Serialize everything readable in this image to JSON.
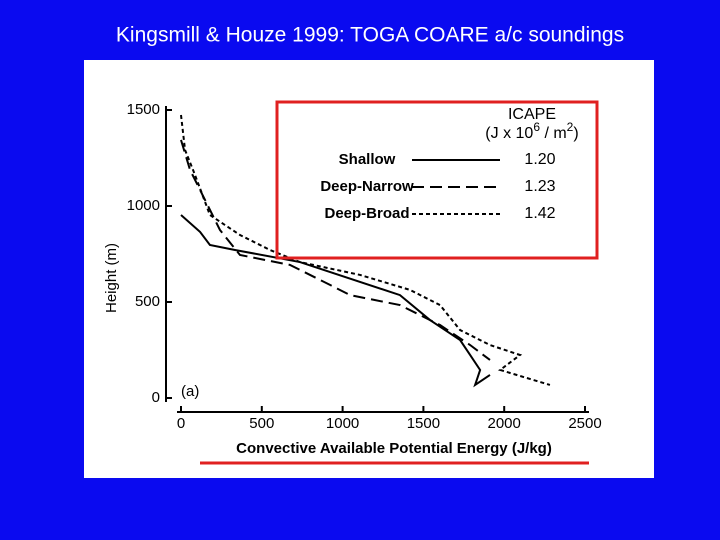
{
  "slide_title": "Kingsmill & Houze 1999: TOGA COARE a/c soundings",
  "chart_data": {
    "type": "line",
    "xlabel": "Convective Available Potential Energy (J/kg)",
    "ylabel": "Height (m)",
    "annotation": "(a)",
    "legend_title": "ICAPE",
    "legend_units": [
      "(J x 10",
      "6",
      " / m",
      "2",
      ")"
    ],
    "xlim": [
      0,
      2500
    ],
    "xticks": [
      0,
      500,
      1000,
      1500,
      2000,
      2500
    ],
    "ylim": [
      0,
      1500
    ],
    "yticks": [
      0,
      500,
      1000,
      1500
    ],
    "series": [
      {
        "name": "Shallow",
        "color": "#000000",
        "dash": "solid",
        "icape": 1.2,
        "icape_label": "1.20",
        "x": [
          0,
          118,
          179,
          334,
          736,
          1355,
          1541,
          1634,
          1727,
          1789,
          1851,
          1820,
          1912
        ],
        "values": [
          953,
          865,
          797,
          771,
          708,
          536,
          406,
          354,
          302,
          224,
          146,
          68,
          120
        ]
      },
      {
        "name": "Deep-Narrow",
        "color": "#000000",
        "dash": "dashed",
        "icape": 1.23,
        "icape_label": "1.23",
        "x": [
          0,
          56,
          149,
          241,
          365,
          675,
          922,
          1046,
          1355,
          1603,
          1789,
          1912
        ],
        "values": [
          1344,
          1188,
          1031,
          875,
          745,
          693,
          589,
          536,
          484,
          380,
          276,
          198
        ]
      },
      {
        "name": "Deep-Broad",
        "color": "#000000",
        "dash": "dotted",
        "icape": 1.42,
        "icape_label": "1.42",
        "x": [
          0,
          25,
          87,
          179,
          365,
          551,
          736,
          1108,
          1417,
          1603,
          1727,
          1912,
          2098,
          1975,
          2283
        ],
        "values": [
          1474,
          1292,
          1161,
          953,
          849,
          771,
          708,
          641,
          563,
          484,
          354,
          276,
          224,
          146,
          68
        ]
      }
    ]
  }
}
